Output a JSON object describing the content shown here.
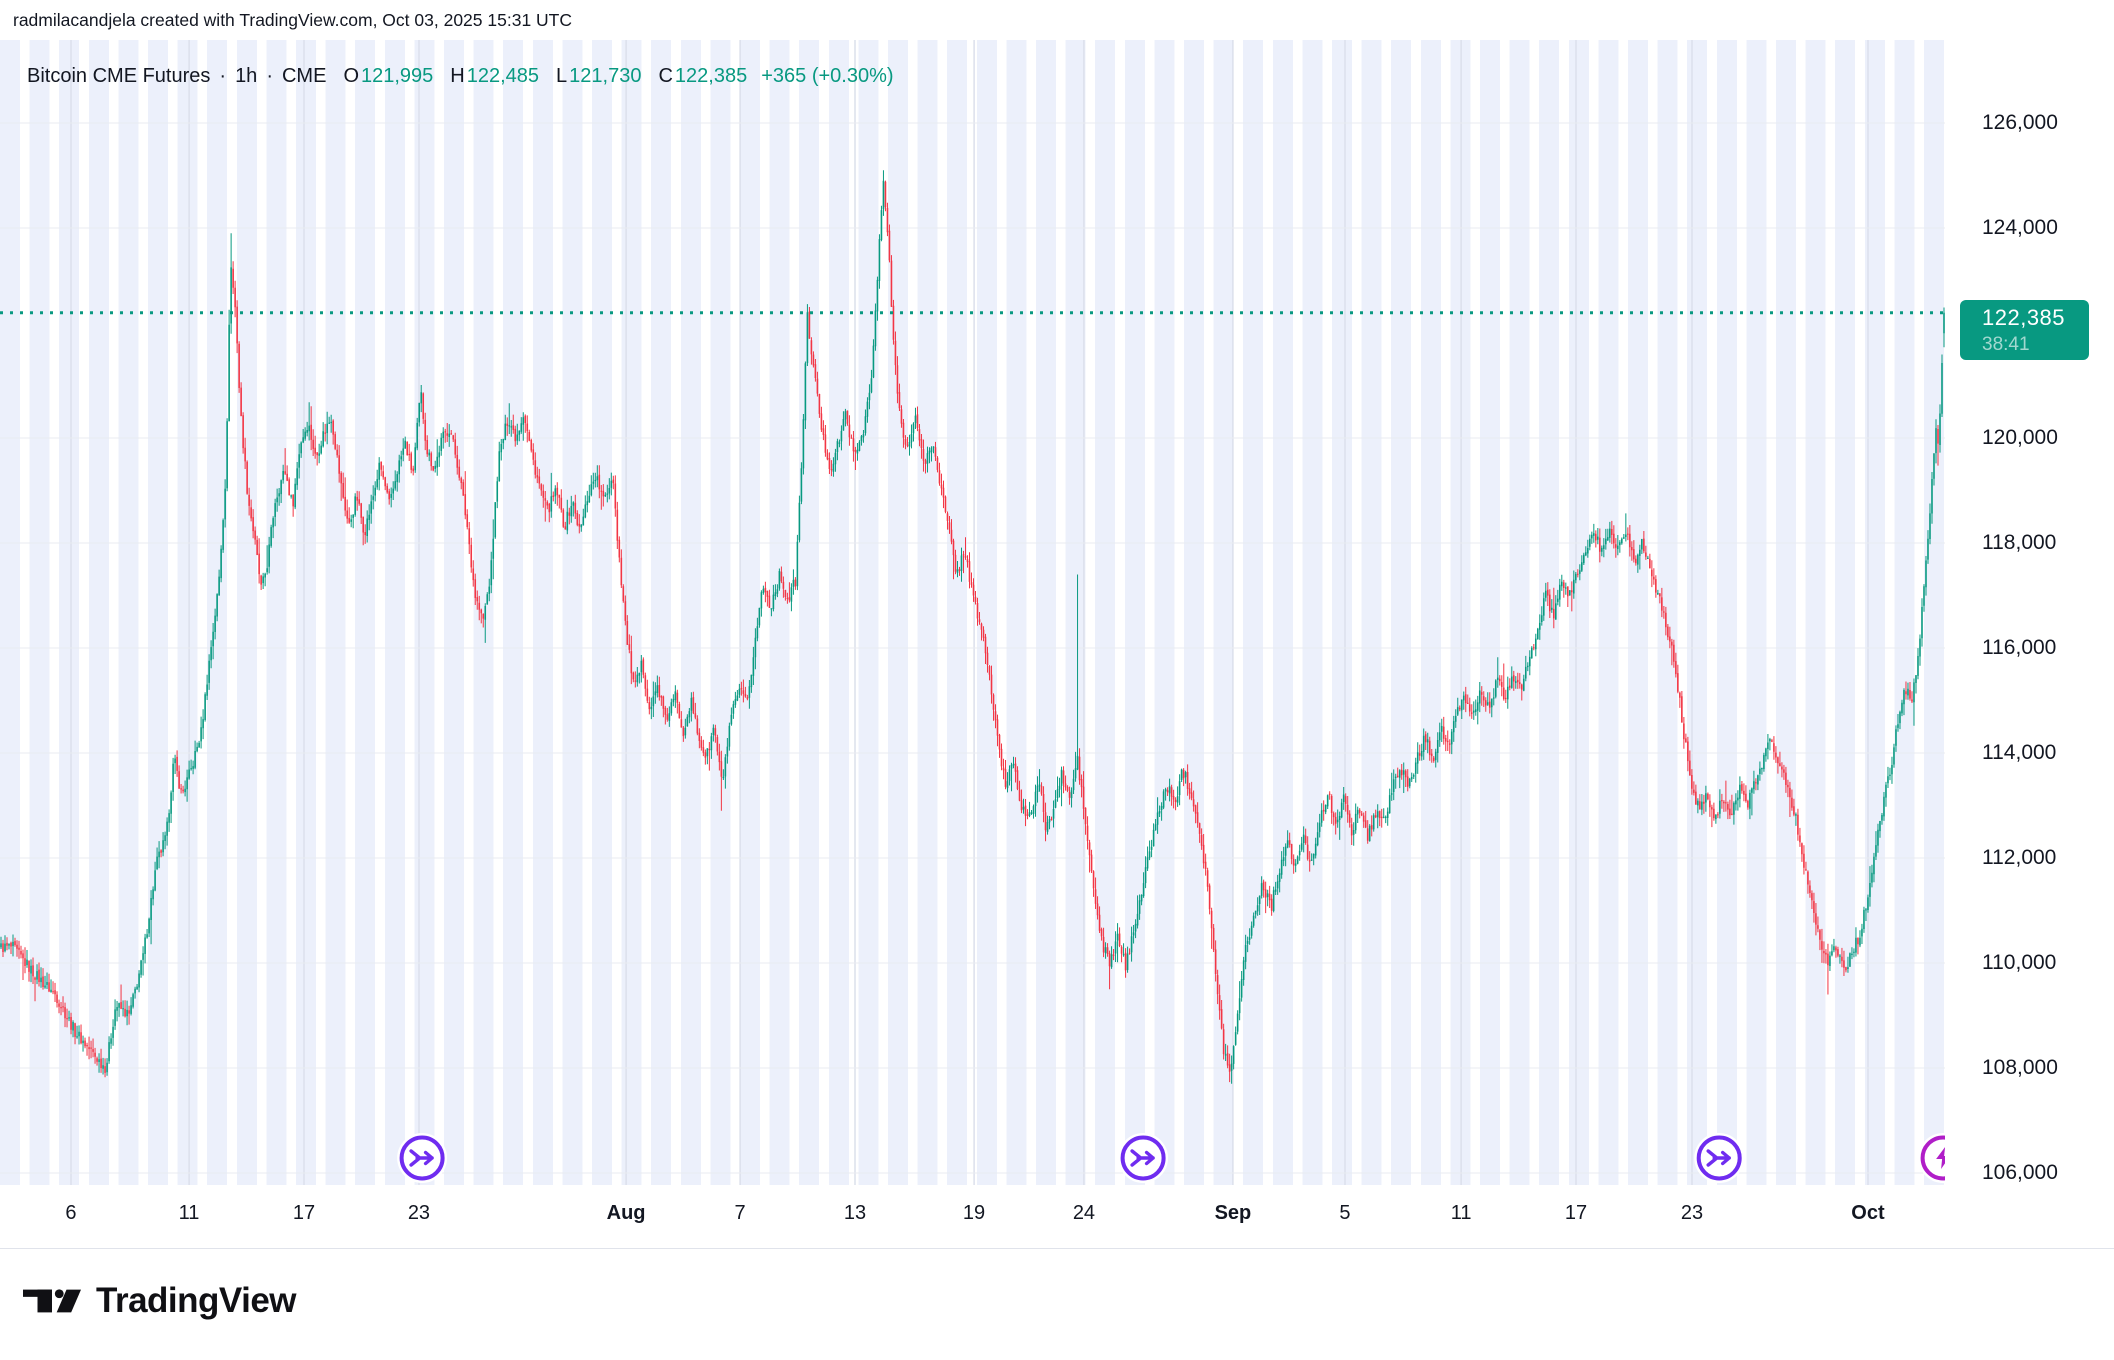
{
  "attribution": "radmilacandjela created with TradingView.com, Oct 03, 2025 15:31 UTC",
  "legend": {
    "symbol": "Bitcoin CME Futures",
    "separator": "·",
    "interval": "1h",
    "exchange": "CME",
    "ohlc": [
      {
        "label": "O",
        "value": "121,995"
      },
      {
        "label": "H",
        "value": "122,485"
      },
      {
        "label": "L",
        "value": "121,730"
      },
      {
        "label": "C",
        "value": "122,385"
      }
    ],
    "change": "+365 (+0.30%)"
  },
  "price_scale": {
    "labels": [
      {
        "text": "126,000",
        "price": 126000
      },
      {
        "text": "124,000",
        "price": 124000
      },
      {
        "text": "120,000",
        "price": 120000
      },
      {
        "text": "118,000",
        "price": 118000
      },
      {
        "text": "116,000",
        "price": 116000
      },
      {
        "text": "114,000",
        "price": 114000
      },
      {
        "text": "112,000",
        "price": 112000
      },
      {
        "text": "110,000",
        "price": 110000
      },
      {
        "text": "108,000",
        "price": 108000
      },
      {
        "text": "106,000",
        "price": 106000
      }
    ],
    "badge": {
      "price": "122,385",
      "countdown": "38:41"
    }
  },
  "time_scale": {
    "labels": [
      {
        "text": "6",
        "t": 0.0365,
        "bold": false
      },
      {
        "text": "11",
        "t": 0.0972,
        "bold": false
      },
      {
        "text": "17",
        "t": 0.1563,
        "bold": false
      },
      {
        "text": "23",
        "t": 0.2154,
        "bold": false
      },
      {
        "text": "Aug",
        "t": 0.3219,
        "bold": true
      },
      {
        "text": "7",
        "t": 0.3805,
        "bold": false
      },
      {
        "text": "13",
        "t": 0.4396,
        "bold": false
      },
      {
        "text": "19",
        "t": 0.5008,
        "bold": false
      },
      {
        "text": "24",
        "t": 0.5573,
        "bold": false
      },
      {
        "text": "Sep",
        "t": 0.6339,
        "bold": true
      },
      {
        "text": "5",
        "t": 0.6915,
        "bold": false
      },
      {
        "text": "11",
        "t": 0.7512,
        "bold": false
      },
      {
        "text": "17",
        "t": 0.8103,
        "bold": false
      },
      {
        "text": "23",
        "t": 0.8699,
        "bold": false
      },
      {
        "text": "Oct",
        "t": 0.9604,
        "bold": true
      }
    ]
  },
  "events": [
    {
      "icon": "merge-arrows",
      "t": 0.217
    },
    {
      "icon": "merge-arrows",
      "t": 0.5877
    },
    {
      "icon": "merge-arrows",
      "t": 0.8839
    },
    {
      "icon": "lightning",
      "t": 0.999
    }
  ],
  "footer": {
    "brand": "TradingView"
  },
  "colors": {
    "up": "#089981",
    "down": "#F23645",
    "badge": "#089981",
    "dotted_line": "#089981",
    "event_purple": "#6F2CF0",
    "event_magenta": "#B01EC8",
    "grid_h": "#E9EBF0",
    "grid_v": "#DCE0EC",
    "text": "#131722"
  },
  "chart_data": {
    "type": "candlestick",
    "title": "Bitcoin CME Futures · 1h · CME",
    "symbol": "Bitcoin CME Futures",
    "interval": "1h",
    "exchange": "CME",
    "last_bar_ohlc": {
      "open": 121995,
      "high": 122485,
      "low": 121730,
      "close": 122385,
      "change": 365,
      "change_pct": 0.3
    },
    "last_price": 122385,
    "countdown": "38:41",
    "y_axis": {
      "min": 106000,
      "max": 126000,
      "step": 2000
    },
    "x_range": [
      "Jul 3, 2025",
      "Oct 3, 2025 15:31 UTC"
    ],
    "grid": true,
    "legend_position": "top-left",
    "path": [
      [
        0.006,
        110300
      ],
      [
        0.017,
        109800
      ],
      [
        0.028,
        109400
      ],
      [
        0.038,
        108700
      ],
      [
        0.049,
        108200
      ],
      [
        0.054,
        108000
      ],
      [
        0.059,
        109200
      ],
      [
        0.066,
        109000
      ],
      [
        0.073,
        110100
      ],
      [
        0.08,
        111900
      ],
      [
        0.085,
        112400
      ],
      [
        0.089,
        113900
      ],
      [
        0.093,
        113200
      ],
      [
        0.098,
        113700
      ],
      [
        0.103,
        114400
      ],
      [
        0.107,
        115700
      ],
      [
        0.112,
        117200
      ],
      [
        0.116,
        119500
      ],
      [
        0.118,
        123400
      ],
      [
        0.121,
        122300
      ],
      [
        0.123,
        120600
      ],
      [
        0.127,
        118900
      ],
      [
        0.13,
        118200
      ],
      [
        0.134,
        117100
      ],
      [
        0.137,
        117600
      ],
      [
        0.141,
        118800
      ],
      [
        0.146,
        119400
      ],
      [
        0.15,
        118700
      ],
      [
        0.154,
        119900
      ],
      [
        0.158,
        120300
      ],
      [
        0.162,
        119600
      ],
      [
        0.166,
        120100
      ],
      [
        0.17,
        120400
      ],
      [
        0.175,
        119100
      ],
      [
        0.179,
        118300
      ],
      [
        0.183,
        118900
      ],
      [
        0.187,
        118200
      ],
      [
        0.191,
        118800
      ],
      [
        0.195,
        119500
      ],
      [
        0.2,
        118700
      ],
      [
        0.204,
        119400
      ],
      [
        0.208,
        119900
      ],
      [
        0.212,
        119300
      ],
      [
        0.216,
        120900
      ],
      [
        0.219,
        119800
      ],
      [
        0.223,
        119400
      ],
      [
        0.227,
        120000
      ],
      [
        0.231,
        120200
      ],
      [
        0.236,
        119300
      ],
      [
        0.24,
        118300
      ],
      [
        0.244,
        117000
      ],
      [
        0.248,
        116500
      ],
      [
        0.252,
        117400
      ],
      [
        0.256,
        119600
      ],
      [
        0.261,
        120400
      ],
      [
        0.265,
        120000
      ],
      [
        0.269,
        120500
      ],
      [
        0.273,
        119700
      ],
      [
        0.277,
        119100
      ],
      [
        0.281,
        118600
      ],
      [
        0.286,
        119000
      ],
      [
        0.29,
        118300
      ],
      [
        0.294,
        118800
      ],
      [
        0.298,
        118200
      ],
      [
        0.302,
        118900
      ],
      [
        0.306,
        119300
      ],
      [
        0.31,
        118800
      ],
      [
        0.315,
        119300
      ],
      [
        0.317,
        118200
      ],
      [
        0.322,
        116200
      ],
      [
        0.326,
        115200
      ],
      [
        0.33,
        115700
      ],
      [
        0.334,
        114800
      ],
      [
        0.338,
        115300
      ],
      [
        0.342,
        114600
      ],
      [
        0.347,
        115100
      ],
      [
        0.351,
        114400
      ],
      [
        0.355,
        115000
      ],
      [
        0.359,
        114300
      ],
      [
        0.363,
        113900
      ],
      [
        0.367,
        114500
      ],
      [
        0.371,
        113400
      ],
      [
        0.376,
        114700
      ],
      [
        0.38,
        115200
      ],
      [
        0.384,
        114900
      ],
      [
        0.388,
        116100
      ],
      [
        0.392,
        117200
      ],
      [
        0.396,
        116800
      ],
      [
        0.401,
        117400
      ],
      [
        0.405,
        116900
      ],
      [
        0.409,
        117300
      ],
      [
        0.412,
        119500
      ],
      [
        0.415,
        122300
      ],
      [
        0.419,
        121100
      ],
      [
        0.423,
        120000
      ],
      [
        0.427,
        119400
      ],
      [
        0.431,
        119900
      ],
      [
        0.435,
        120500
      ],
      [
        0.439,
        119600
      ],
      [
        0.444,
        120200
      ],
      [
        0.448,
        121100
      ],
      [
        0.451,
        123000
      ],
      [
        0.454,
        124900
      ],
      [
        0.457,
        123600
      ],
      [
        0.459,
        121900
      ],
      [
        0.463,
        120300
      ],
      [
        0.467,
        119800
      ],
      [
        0.471,
        120400
      ],
      [
        0.475,
        119500
      ],
      [
        0.48,
        119900
      ],
      [
        0.484,
        119000
      ],
      [
        0.488,
        118200
      ],
      [
        0.492,
        117400
      ],
      [
        0.496,
        117900
      ],
      [
        0.5,
        117000
      ],
      [
        0.505,
        116300
      ],
      [
        0.509,
        115400
      ],
      [
        0.513,
        114200
      ],
      [
        0.517,
        113400
      ],
      [
        0.521,
        113900
      ],
      [
        0.525,
        113000
      ],
      [
        0.529,
        112700
      ],
      [
        0.534,
        113500
      ],
      [
        0.538,
        112500
      ],
      [
        0.542,
        113000
      ],
      [
        0.546,
        113600
      ],
      [
        0.55,
        113100
      ],
      [
        0.554,
        113900
      ],
      [
        0.559,
        112400
      ],
      [
        0.563,
        111200
      ],
      [
        0.567,
        110300
      ],
      [
        0.571,
        110000
      ],
      [
        0.575,
        110500
      ],
      [
        0.579,
        109900
      ],
      [
        0.583,
        110700
      ],
      [
        0.588,
        111500
      ],
      [
        0.592,
        112300
      ],
      [
        0.596,
        112900
      ],
      [
        0.6,
        113400
      ],
      [
        0.604,
        113000
      ],
      [
        0.608,
        113700
      ],
      [
        0.613,
        113200
      ],
      [
        0.617,
        112500
      ],
      [
        0.621,
        111500
      ],
      [
        0.625,
        109800
      ],
      [
        0.629,
        108400
      ],
      [
        0.633,
        107900
      ],
      [
        0.637,
        109300
      ],
      [
        0.641,
        110400
      ],
      [
        0.645,
        110900
      ],
      [
        0.649,
        111500
      ],
      [
        0.654,
        111100
      ],
      [
        0.658,
        111800
      ],
      [
        0.662,
        112300
      ],
      [
        0.666,
        111800
      ],
      [
        0.67,
        112400
      ],
      [
        0.674,
        111900
      ],
      [
        0.678,
        112600
      ],
      [
        0.683,
        113200
      ],
      [
        0.687,
        112700
      ],
      [
        0.691,
        113100
      ],
      [
        0.695,
        112500
      ],
      [
        0.699,
        113000
      ],
      [
        0.703,
        112400
      ],
      [
        0.708,
        112900
      ],
      [
        0.712,
        112700
      ],
      [
        0.716,
        113300
      ],
      [
        0.72,
        113800
      ],
      [
        0.724,
        113300
      ],
      [
        0.728,
        113800
      ],
      [
        0.733,
        114300
      ],
      [
        0.737,
        113900
      ],
      [
        0.741,
        114500
      ],
      [
        0.745,
        114100
      ],
      [
        0.749,
        114700
      ],
      [
        0.753,
        115100
      ],
      [
        0.757,
        114700
      ],
      [
        0.762,
        115200
      ],
      [
        0.766,
        114800
      ],
      [
        0.77,
        115400
      ],
      [
        0.774,
        115000
      ],
      [
        0.778,
        115500
      ],
      [
        0.782,
        115200
      ],
      [
        0.787,
        115800
      ],
      [
        0.791,
        116400
      ],
      [
        0.795,
        117000
      ],
      [
        0.799,
        116600
      ],
      [
        0.803,
        117200
      ],
      [
        0.807,
        117000
      ],
      [
        0.812,
        117500
      ],
      [
        0.816,
        117900
      ],
      [
        0.82,
        118200
      ],
      [
        0.824,
        117800
      ],
      [
        0.828,
        118300
      ],
      [
        0.832,
        117900
      ],
      [
        0.836,
        118200
      ],
      [
        0.841,
        117700
      ],
      [
        0.845,
        118000
      ],
      [
        0.849,
        117500
      ],
      [
        0.853,
        117000
      ],
      [
        0.857,
        116400
      ],
      [
        0.861,
        115800
      ],
      [
        0.866,
        114400
      ],
      [
        0.87,
        113400
      ],
      [
        0.874,
        112900
      ],
      [
        0.878,
        113300
      ],
      [
        0.882,
        112700
      ],
      [
        0.886,
        113200
      ],
      [
        0.89,
        112800
      ],
      [
        0.895,
        113300
      ],
      [
        0.899,
        113000
      ],
      [
        0.903,
        113500
      ],
      [
        0.907,
        113900
      ],
      [
        0.911,
        114300
      ],
      [
        0.915,
        113800
      ],
      [
        0.92,
        113300
      ],
      [
        0.924,
        112700
      ],
      [
        0.928,
        111900
      ],
      [
        0.932,
        111200
      ],
      [
        0.936,
        110500
      ],
      [
        0.94,
        110000
      ],
      [
        0.944,
        110300
      ],
      [
        0.949,
        109900
      ],
      [
        0.953,
        110200
      ],
      [
        0.957,
        110600
      ],
      [
        0.961,
        111300
      ],
      [
        0.965,
        112200
      ],
      [
        0.969,
        113100
      ],
      [
        0.974,
        114000
      ],
      [
        0.977,
        114800
      ],
      [
        0.981,
        115300
      ],
      [
        0.983,
        114900
      ],
      [
        0.986,
        115600
      ],
      [
        0.989,
        116800
      ],
      [
        0.992,
        118200
      ],
      [
        0.994,
        119400
      ],
      [
        0.996,
        120300
      ],
      [
        0.997,
        119900
      ],
      [
        0.9986,
        121000
      ],
      [
        0.9993,
        121700
      ],
      [
        1.0,
        122385
      ]
    ],
    "spikes": [
      {
        "t": 0.054,
        "low": 107900
      },
      {
        "t": 0.118,
        "high": 123900
      },
      {
        "t": 0.371,
        "low": 112900
      },
      {
        "t": 0.454,
        "high": 125100
      },
      {
        "t": 0.554,
        "high": 117400
      },
      {
        "t": 0.571,
        "low": 109500
      },
      {
        "t": 0.633,
        "low": 107700
      },
      {
        "t": 0.94,
        "low": 109400
      }
    ]
  }
}
